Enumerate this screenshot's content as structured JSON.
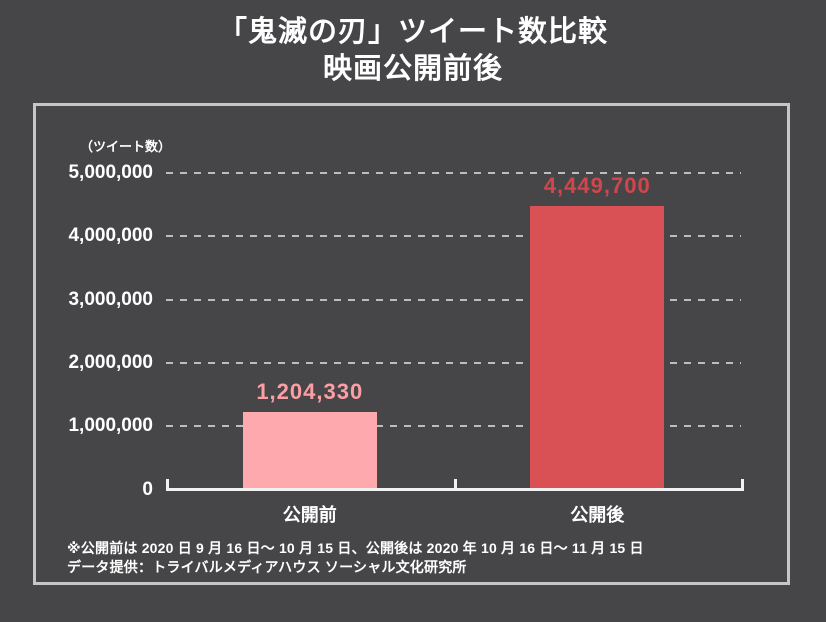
{
  "title": {
    "line1": "「鬼滅の刃」ツイート数比較",
    "line2": "映画公開前後"
  },
  "chart_data": {
    "type": "bar",
    "title": "「鬼滅の刃」ツイート数比較 映画公開前後",
    "unit_label": "（ツイート数）",
    "categories": [
      "公開前",
      "公開後"
    ],
    "values": [
      1204330,
      4449700
    ],
    "value_labels": [
      "1,204,330",
      "4,449,700"
    ],
    "bar_colors": [
      "#fda9ad",
      "#d95154"
    ],
    "value_label_colors": [
      "#fb9fa5",
      "#d2464b"
    ],
    "ylim": [
      0,
      5000000
    ],
    "ytick_interval": 1000000,
    "ytick_labels": [
      "0",
      "1,000,000",
      "2,000,000",
      "3,000,000",
      "4,000,000",
      "5,000,000"
    ],
    "grid": "horizontal-dashed",
    "legend": "none"
  },
  "footnotes": [
    "※公開前は 2020 日 9 月 16 日～ 10 月 15 日、公開後は 2020 年 10 月 16 日～ 11 月 15 日",
    "データ提供：トライバルメディアハウス ソーシャル文化研究所"
  ]
}
